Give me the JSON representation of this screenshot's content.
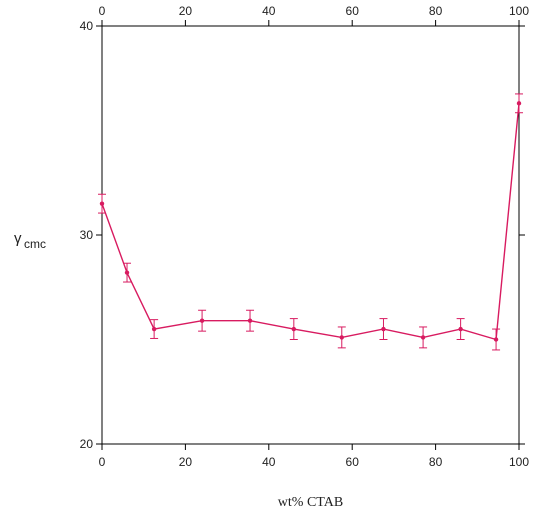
{
  "chart_data": {
    "type": "line",
    "title": "",
    "xlabel": "wt% CTAB",
    "ylabel": {
      "main": "γ",
      "sub": "cmc"
    },
    "xlim": [
      0,
      100
    ],
    "ylim": [
      20,
      40
    ],
    "x_ticks": [
      0,
      20,
      40,
      60,
      80,
      100
    ],
    "y_ticks": [
      20,
      30,
      40
    ],
    "x_ticks_top": true,
    "y_ticks_right": true,
    "grid": false,
    "legend": "none",
    "colors": {
      "series": "#d81b60",
      "axis": "#000000"
    },
    "series": [
      {
        "x": [
          0,
          6,
          12.5,
          24,
          35.5,
          46,
          57.5,
          67.5,
          77,
          86,
          94.5,
          100
        ],
        "y": [
          31.5,
          28.2,
          25.5,
          25.9,
          25.9,
          25.5,
          25.1,
          25.5,
          25.1,
          25.5,
          25.0,
          36.3
        ],
        "error": [
          0.45,
          0.45,
          0.45,
          0.5,
          0.5,
          0.5,
          0.5,
          0.5,
          0.5,
          0.5,
          0.5,
          0.45
        ]
      }
    ]
  }
}
